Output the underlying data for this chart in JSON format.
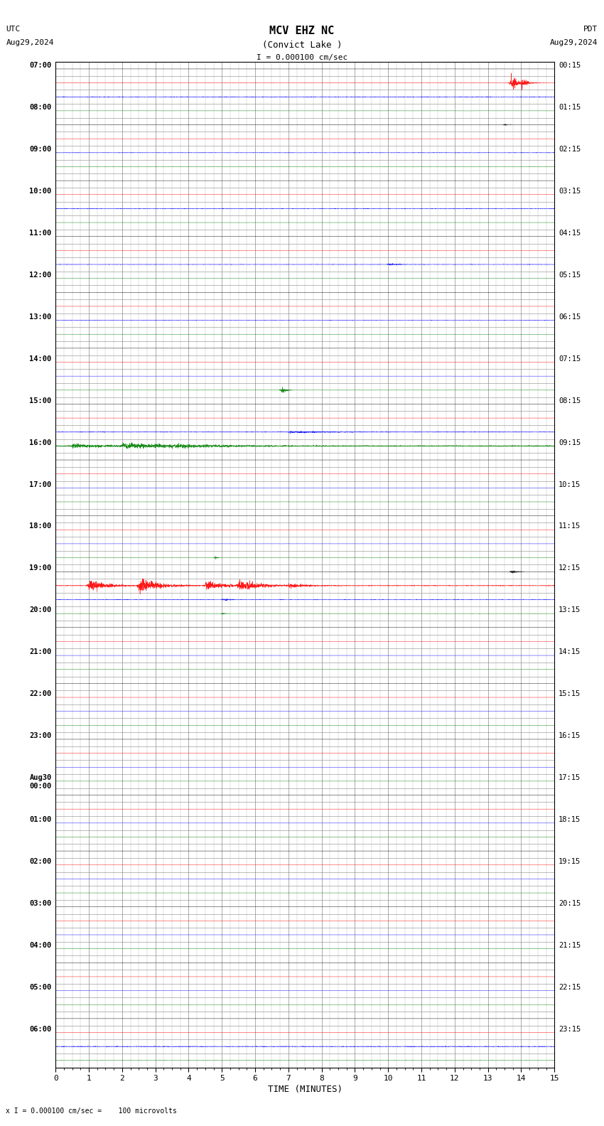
{
  "title_line1": "MCV EHZ NC",
  "title_line2": "(Convict Lake )",
  "scale_label": "I = 0.000100 cm/sec",
  "utc_label": "UTC",
  "pdt_label": "PDT",
  "date_left": "Aug29,2024",
  "date_right": "Aug29,2024",
  "bottom_label": "TIME (MINUTES)",
  "bottom_note": "x I = 0.000100 cm/sec =    100 microvolts",
  "x_ticks": [
    0,
    1,
    2,
    3,
    4,
    5,
    6,
    7,
    8,
    9,
    10,
    11,
    12,
    13,
    14,
    15
  ],
  "n_rows": 72,
  "minutes": 15,
  "bg_color": "#ffffff",
  "trace_colors_cycle": [
    "black",
    "red",
    "blue",
    "green"
  ],
  "grid_color": "#888888",
  "grid_minor_color": "#bbbbbb",
  "hour_labels_utc": [
    "07:00",
    "08:00",
    "09:00",
    "10:00",
    "11:00",
    "12:00",
    "13:00",
    "14:00",
    "15:00",
    "16:00",
    "17:00",
    "18:00",
    "19:00",
    "20:00",
    "21:00",
    "22:00",
    "23:00",
    "Aug30\n00:00"
  ],
  "hour_labels_pdt": [
    "00:15",
    "01:15",
    "02:15",
    "03:15",
    "04:15",
    "05:15",
    "06:15",
    "07:15",
    "08:15",
    "09:15",
    "10:15",
    "11:15",
    "12:15",
    "13:15",
    "14:15",
    "15:15",
    "16:15",
    "17:15"
  ],
  "extra_utc": [
    "01:00",
    "02:00",
    "03:00",
    "04:00",
    "05:00",
    "06:00"
  ],
  "extra_pdt": [
    "18:15",
    "19:15",
    "20:15",
    "21:15",
    "22:15",
    "23:15"
  ]
}
